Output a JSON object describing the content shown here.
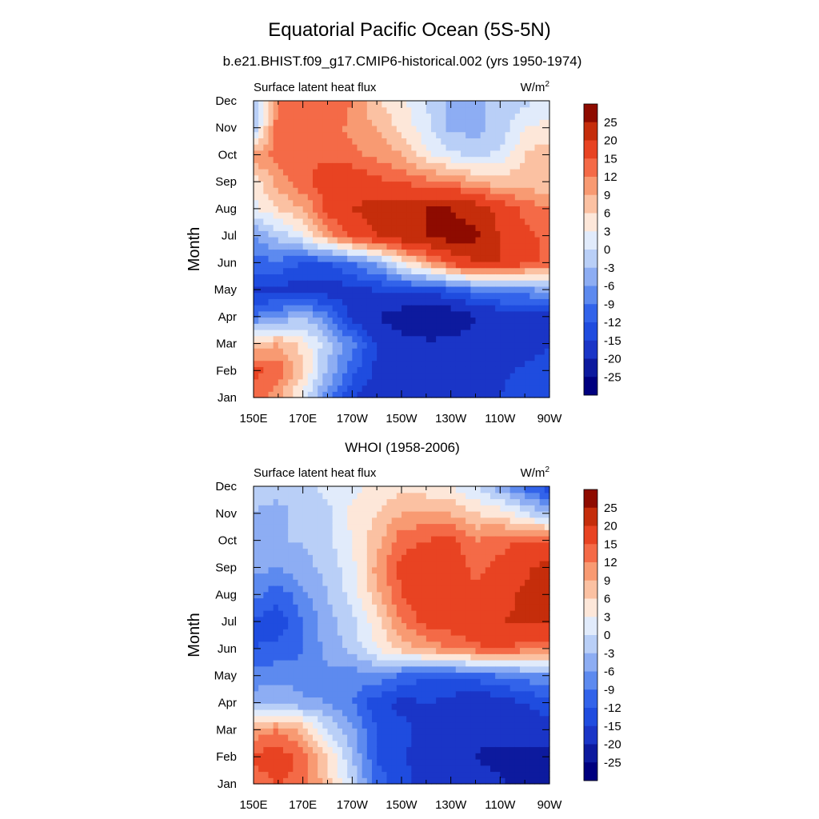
{
  "figure": {
    "title": "Equatorial Pacific Ocean (5S-5N)"
  },
  "chart_data": [
    {
      "type": "heatmap",
      "panel_title": "b.e21.BHIST.f09_g17.CMIP6-historical.002 (yrs 1950-1974)",
      "left_string": "Surface latent heat flux",
      "units_base": "W/m",
      "units_exp": "2",
      "xlabel": "",
      "ylabel": "Month",
      "x_tick_labels": [
        "150E",
        "170E",
        "170W",
        "150W",
        "130W",
        "110W",
        "90W"
      ],
      "y_tick_labels": [
        "Jan",
        "Feb",
        "Mar",
        "Apr",
        "May",
        "Jun",
        "Jul",
        "Aug",
        "Sep",
        "Oct",
        "Nov",
        "Dec"
      ],
      "x_longitudes": [
        150,
        160,
        170,
        180,
        190,
        200,
        210,
        220,
        230,
        240,
        250,
        260,
        270
      ],
      "months": [
        "Jan",
        "Feb",
        "Mar",
        "Apr",
        "May",
        "Jun",
        "Jul",
        "Aug",
        "Sep",
        "Oct",
        "Nov",
        "Dec"
      ],
      "values": [
        [
          14,
          10,
          2,
          -8,
          -15,
          -17,
          -19,
          -18,
          -17,
          -17,
          -15,
          -12,
          -12
        ],
        [
          16,
          14,
          6,
          -3,
          -11,
          -16,
          -18,
          -18,
          -17,
          -17,
          -16,
          -14,
          -13
        ],
        [
          7,
          9,
          5,
          -2,
          -8,
          -15,
          -18,
          -19,
          -19,
          -18,
          -19,
          -18,
          -15
        ],
        [
          -9,
          -6,
          -3,
          -8,
          -16,
          -20,
          -23,
          -25,
          -24,
          -20,
          -18,
          -17,
          -16
        ],
        [
          -16,
          -16,
          -17,
          -17,
          -16,
          -15,
          -14,
          -13,
          -12,
          -9,
          -7,
          -7,
          -5
        ],
        [
          -10,
          -10,
          -12,
          -12,
          -9,
          -5,
          3,
          9,
          16,
          20,
          20,
          16,
          14
        ],
        [
          -6,
          -2,
          2,
          10,
          16,
          20,
          23,
          25,
          27,
          26,
          20,
          16,
          14
        ],
        [
          2,
          6,
          9,
          16,
          20,
          22,
          23,
          25,
          25,
          23,
          18,
          14,
          12
        ],
        [
          4,
          10,
          14,
          17,
          18,
          16,
          15,
          13,
          12,
          9,
          7,
          8,
          6
        ],
        [
          10,
          14,
          15,
          14,
          13,
          11,
          9,
          4,
          1,
          -1,
          1,
          6,
          8
        ],
        [
          -2,
          14,
          15,
          14,
          11,
          9,
          5,
          1,
          -4,
          -4,
          -2,
          3,
          4
        ],
        [
          -4,
          13,
          15,
          14,
          12,
          6,
          4,
          0,
          -4,
          -4,
          -2,
          -1,
          1
        ]
      ],
      "color_levels": [
        -25,
        -20,
        -15,
        -12,
        -9,
        -6,
        -3,
        0,
        3,
        6,
        9,
        12,
        15,
        20,
        25
      ],
      "colors": [
        "#00007f",
        "#0d1a9e",
        "#1a35c7",
        "#1f4cdf",
        "#3263ea",
        "#5d8aef",
        "#8dadf3",
        "#b9cff7",
        "#e1ebfb",
        "#fde7d9",
        "#fbc1a2",
        "#f89a72",
        "#f46a47",
        "#e84322",
        "#c52d0b",
        "#8e0b00"
      ],
      "colorbar_labels": [
        "25",
        "20",
        "15",
        "12",
        "9",
        "6",
        "3",
        "0",
        "-3",
        "-6",
        "-9",
        "-12",
        "-15",
        "-20",
        "-25"
      ]
    },
    {
      "type": "heatmap",
      "panel_title": "WHOI (1958-2006)",
      "left_string": "Surface latent heat flux",
      "units_base": "W/m",
      "units_exp": "2",
      "xlabel": "",
      "ylabel": "Month",
      "x_tick_labels": [
        "150E",
        "170E",
        "170W",
        "150W",
        "130W",
        "110W",
        "90W"
      ],
      "y_tick_labels": [
        "Jan",
        "Feb",
        "Mar",
        "Apr",
        "May",
        "Jun",
        "Jul",
        "Aug",
        "Sep",
        "Oct",
        "Nov",
        "Dec"
      ],
      "x_longitudes": [
        150,
        160,
        170,
        180,
        190,
        200,
        210,
        220,
        230,
        240,
        250,
        260,
        270
      ],
      "months": [
        "Jan",
        "Feb",
        "Mar",
        "Apr",
        "May",
        "Jun",
        "Jul",
        "Aug",
        "Sep",
        "Oct",
        "Nov",
        "Dec"
      ],
      "values": [
        [
          13,
          15,
          14,
          7,
          0,
          -11,
          -13,
          -18,
          -17,
          -18,
          -19,
          -22,
          -25
        ],
        [
          16,
          17,
          14,
          6,
          -3,
          -12,
          -14,
          -18,
          -18,
          -20,
          -22,
          -22,
          -22
        ],
        [
          10,
          12,
          8,
          0,
          -5,
          -12,
          -14,
          -16,
          -17,
          -19,
          -18,
          -17,
          -17
        ],
        [
          -4,
          -3,
          -5,
          -6,
          -9,
          -14,
          -16,
          -15,
          -16,
          -18,
          -17,
          -15,
          -13
        ],
        [
          -8,
          -7,
          -8,
          -7,
          -8,
          -7,
          -10,
          -12,
          -12,
          -11,
          -9,
          -8,
          -6
        ],
        [
          -12,
          -11,
          -9,
          -5,
          -2,
          3,
          7,
          10,
          12,
          14,
          15,
          13,
          12
        ],
        [
          -13,
          -14,
          -9,
          -4,
          -1,
          5,
          12,
          16,
          17,
          19,
          20,
          21,
          20
        ],
        [
          -8,
          -11,
          -7,
          -3,
          1,
          8,
          15,
          19,
          18,
          16,
          18,
          21,
          22
        ],
        [
          -5,
          -6,
          -4,
          -2,
          2,
          10,
          16,
          18,
          18,
          14,
          16,
          19,
          22
        ],
        [
          -3,
          -3,
          -3,
          -1,
          3,
          8,
          14,
          15,
          16,
          12,
          14,
          15,
          15
        ],
        [
          -3,
          -4,
          -2,
          -1,
          4,
          6,
          9,
          10,
          9,
          6,
          5,
          1,
          -4
        ],
        [
          -2,
          -2,
          -1,
          1,
          2,
          4,
          5,
          4,
          3,
          0,
          -5,
          -10,
          -14
        ]
      ],
      "color_levels": [
        -25,
        -20,
        -15,
        -12,
        -9,
        -6,
        -3,
        0,
        3,
        6,
        9,
        12,
        15,
        20,
        25
      ],
      "colors": [
        "#00007f",
        "#0d1a9e",
        "#1a35c7",
        "#1f4cdf",
        "#3263ea",
        "#5d8aef",
        "#8dadf3",
        "#b9cff7",
        "#e1ebfb",
        "#fde7d9",
        "#fbc1a2",
        "#f89a72",
        "#f46a47",
        "#e84322",
        "#c52d0b",
        "#8e0b00"
      ],
      "colorbar_labels": [
        "25",
        "20",
        "15",
        "12",
        "9",
        "6",
        "3",
        "0",
        "-3",
        "-6",
        "-9",
        "-12",
        "-15",
        "-20",
        "-25"
      ]
    }
  ]
}
